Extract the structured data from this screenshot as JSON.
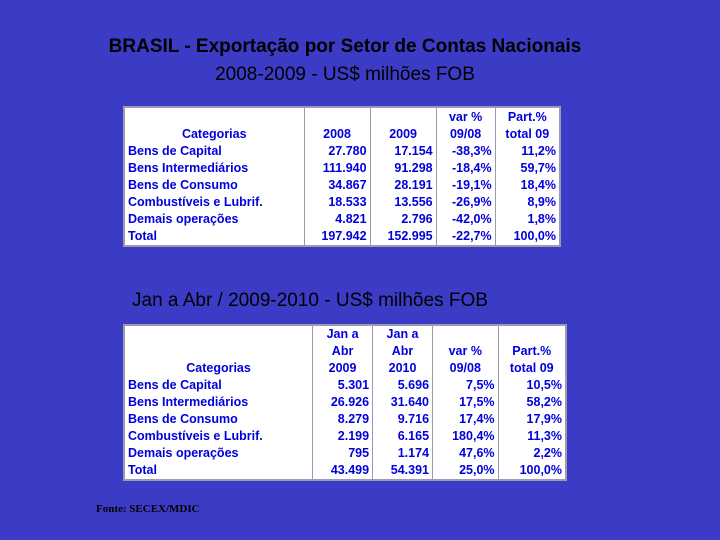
{
  "title": {
    "line1": "BRASIL - Exportação por Setor de Contas Nacionais",
    "line2": "2008-2009 - US$ milhões FOB"
  },
  "table1": {
    "headers": {
      "categorias": "Categorias",
      "y1": "2008",
      "y2": "2009",
      "var_top": "var %",
      "var_bottom": "09/08",
      "part_top": "Part.%",
      "part_bottom": "total 09"
    },
    "rows": [
      {
        "cat": "Bens de Capital",
        "v1": "27.780",
        "v2": "17.154",
        "var": "-38,3%",
        "part": "11,2%"
      },
      {
        "cat": "Bens Intermediários",
        "v1": "111.940",
        "v2": "91.298",
        "var": "-18,4%",
        "part": "59,7%"
      },
      {
        "cat": "Bens de Consumo",
        "v1": "34.867",
        "v2": "28.191",
        "var": "-19,1%",
        "part": "18,4%"
      },
      {
        "cat": "Combustíveis e Lubrif.",
        "v1": "18.533",
        "v2": "13.556",
        "var": "-26,9%",
        "part": "8,9%"
      },
      {
        "cat": "Demais operações",
        "v1": "4.821",
        "v2": "2.796",
        "var": "-42,0%",
        "part": "1,8%"
      },
      {
        "cat": "Total",
        "v1": "197.942",
        "v2": "152.995",
        "var": "-22,7%",
        "part": "100,0%"
      }
    ]
  },
  "subtitle": "Jan a Abr / 2009-2010 - US$ milhões FOB",
  "table2": {
    "headers": {
      "categorias": "Categorias",
      "c1_l1": "Jan a",
      "c1_l2": "Abr",
      "c1_l3": "2009",
      "c2_l1": "Jan a",
      "c2_l2": "Abr",
      "c2_l3": "2010",
      "var_top": "var %",
      "var_bottom": "09/08",
      "part_top": "Part.%",
      "part_bottom": "total 09"
    },
    "rows": [
      {
        "cat": "Bens de Capital",
        "v1": "5.301",
        "v2": "5.696",
        "var": "7,5%",
        "part": "10,5%"
      },
      {
        "cat": "Bens Intermediários",
        "v1": "26.926",
        "v2": "31.640",
        "var": "17,5%",
        "part": "58,2%"
      },
      {
        "cat": "Bens de Consumo",
        "v1": "8.279",
        "v2": "9.716",
        "var": "17,4%",
        "part": "17,9%"
      },
      {
        "cat": "Combustíveis e Lubrif.",
        "v1": "2.199",
        "v2": "6.165",
        "var": "180,4%",
        "part": "11,3%"
      },
      {
        "cat": "Demais operações",
        "v1": "795",
        "v2": "1.174",
        "var": "47,6%",
        "part": "2,2%"
      },
      {
        "cat": "Total",
        "v1": "43.499",
        "v2": "54.391",
        "var": "25,0%",
        "part": "100,0%"
      }
    ]
  },
  "source": "Fonte: SECEX/MDIC"
}
